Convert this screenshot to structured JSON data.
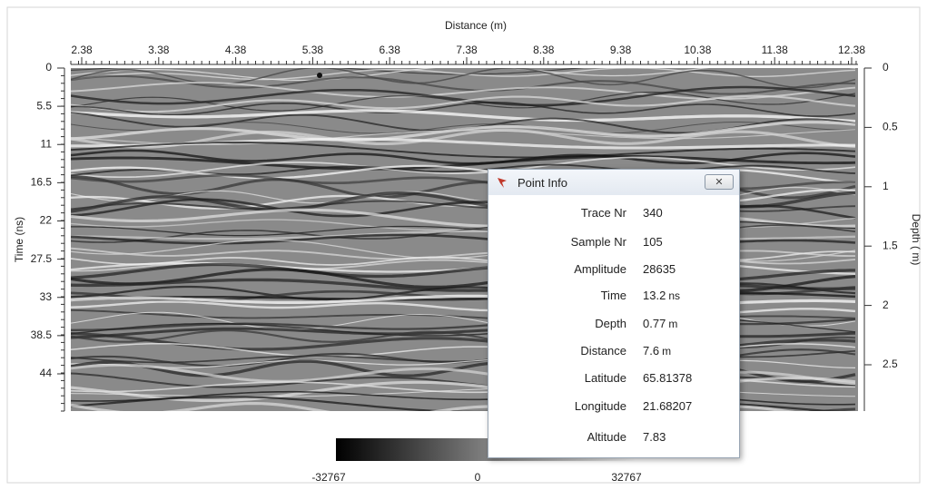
{
  "top_axis": {
    "title": "Distance (m)",
    "ticks": [
      2.38,
      3.38,
      4.38,
      5.38,
      6.38,
      7.38,
      8.38,
      9.38,
      10.38,
      11.38,
      12.38
    ]
  },
  "left_axis": {
    "title": "Time (ns)",
    "ticks": [
      0,
      5.5,
      11,
      16.5,
      22,
      27.5,
      33,
      38.5,
      44
    ]
  },
  "right_axis": {
    "title": "Depth ( m)",
    "ticks": [
      0,
      0.5,
      1,
      1.5,
      2,
      2.5
    ]
  },
  "colorbar": {
    "labels": [
      -32767,
      0,
      32767
    ]
  },
  "dialog": {
    "title": "Point Info",
    "fields": [
      {
        "label": "Trace Nr",
        "value": "340"
      },
      {
        "label": "Sample Nr",
        "value": "105"
      },
      {
        "label": "Amplitude",
        "value": "28635"
      },
      {
        "label": "Time",
        "value": "13.2",
        "unit": "ns"
      },
      {
        "label": "Depth",
        "value": "0.77",
        "unit": "m"
      },
      {
        "label": "Distance",
        "value": "7.6",
        "unit": "m"
      },
      {
        "label": "Latitude",
        "value": "65.81378"
      },
      {
        "label": "Longitude",
        "value": "21.68207"
      },
      {
        "label": "Altitude",
        "value": "7.83"
      }
    ]
  }
}
